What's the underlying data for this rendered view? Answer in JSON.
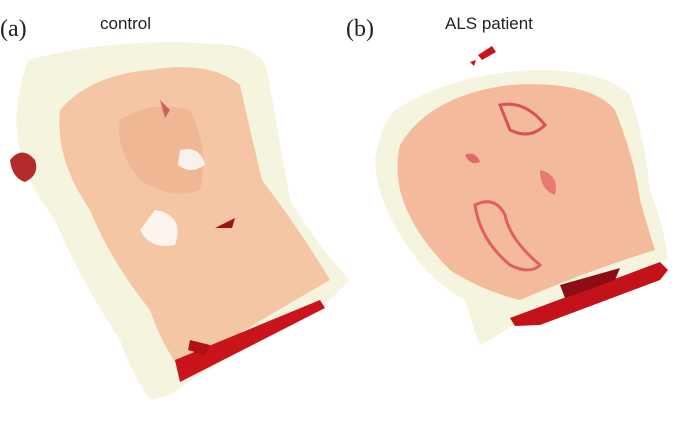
{
  "panels": [
    {
      "tag": "(a)",
      "label": "control"
    },
    {
      "tag": "(b)",
      "label": "ALS patient"
    }
  ]
}
